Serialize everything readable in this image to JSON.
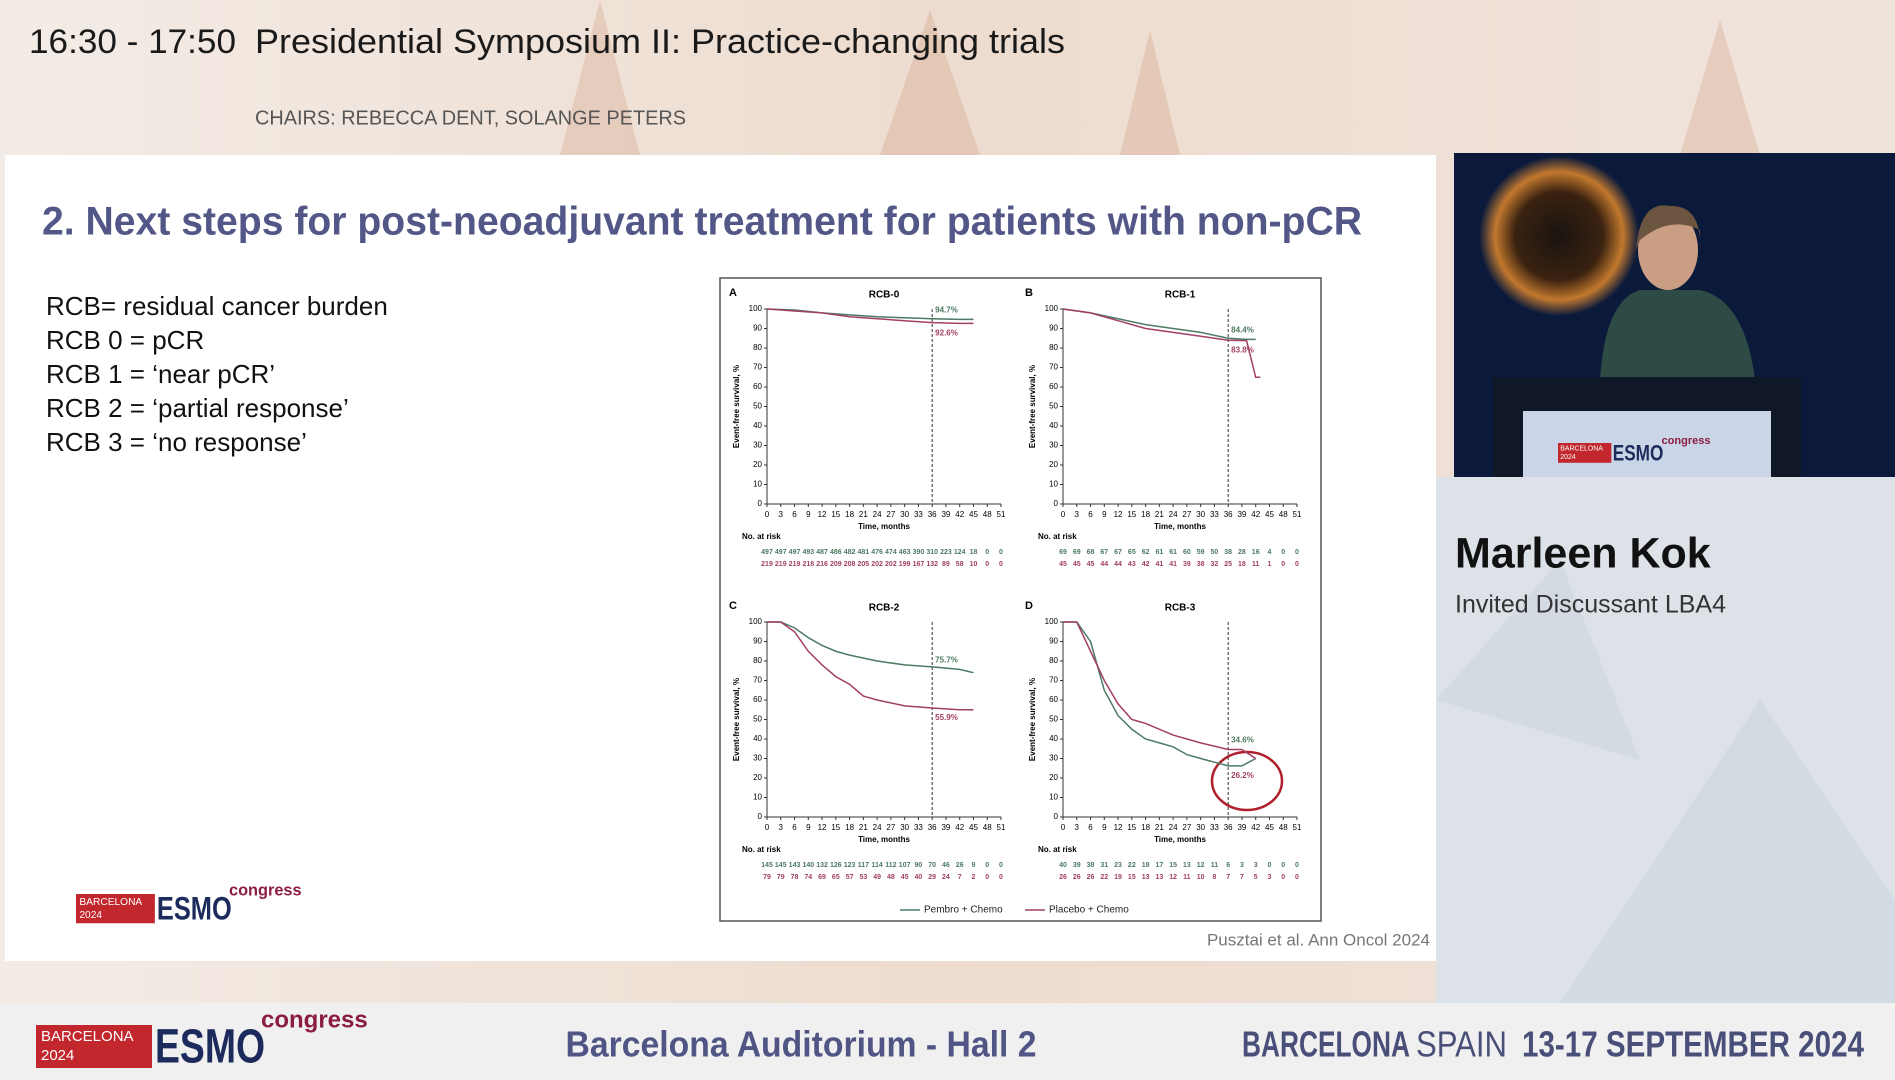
{
  "header": {
    "time": "16:30 - 17:50",
    "session": "Presidential Symposium II: Practice-changing trials",
    "chairs": "CHAIRS: REBECCA DENT, SOLANGE PETERS"
  },
  "slide": {
    "title": "2. Next steps for post-neoadjuvant treatment for patients with non-pCR",
    "definitions": [
      "RCB= residual cancer burden",
      "RCB 0 = pCR",
      "RCB 1 = ‘near pCR’",
      "RCB 2 = ‘partial response’",
      "RCB 3 = ‘no response’"
    ],
    "citation": "Pusztai et al. Ann Oncol 2024"
  },
  "logo": {
    "city": "BARCELONA",
    "year": "2024",
    "brand": "ESMO",
    "suffix": "congress"
  },
  "speaker": {
    "name": "Marleen Kok",
    "role": "Invited Discussant LBA4"
  },
  "footer": {
    "venue": "Barcelona Auditorium - Hall 2",
    "city": "BARCELONA",
    "country": "SPAIN",
    "dates": "13-17 SEPTEMBER 2024"
  },
  "figure_legend": [
    {
      "name": "Pembro + Chemo",
      "color": "#4d7a60"
    },
    {
      "name": "Placebo + Chemo",
      "color": "#a23f66"
    }
  ],
  "chart_data": [
    {
      "type": "line",
      "letter": "A",
      "title": "RCB-0",
      "xlabel": "Time, months",
      "ylabel": "Event-free survival, %",
      "xlim": [
        0,
        51
      ],
      "ylim": [
        0,
        100
      ],
      "xticks": [
        0,
        3,
        6,
        9,
        12,
        15,
        18,
        21,
        24,
        27,
        30,
        33,
        36,
        39,
        42,
        45,
        48,
        51
      ],
      "yticks": [
        0,
        10,
        20,
        30,
        40,
        50,
        60,
        70,
        80,
        90,
        100
      ],
      "vline": 36,
      "series": [
        {
          "color": "#4d7a60",
          "x": [
            0,
            6,
            12,
            18,
            24,
            30,
            36,
            42,
            45
          ],
          "values": [
            100,
            99.5,
            98,
            97,
            96,
            95.5,
            95,
            94.7,
            94.7
          ]
        },
        {
          "color": "#a23f66",
          "x": [
            0,
            6,
            12,
            18,
            24,
            30,
            36,
            42,
            45
          ],
          "values": [
            100,
            99,
            98,
            96,
            95,
            94,
            93,
            92.6,
            92.6
          ]
        }
      ],
      "annotations": [
        {
          "value": 94.7,
          "label": "94.7%"
        },
        {
          "value": 92.6,
          "label": "92.6%"
        }
      ],
      "at_risk": {
        "label": "No. at risk",
        "rows": [
          [
            497,
            497,
            497,
            493,
            487,
            486,
            482,
            481,
            476,
            474,
            463,
            390,
            310,
            223,
            124,
            18,
            0,
            0
          ],
          [
            219,
            219,
            219,
            218,
            216,
            209,
            208,
            205,
            202,
            202,
            199,
            167,
            132,
            89,
            58,
            10,
            0,
            0
          ]
        ]
      }
    },
    {
      "type": "line",
      "letter": "B",
      "title": "RCB-1",
      "xlabel": "Time, months",
      "ylabel": "Event-free survival, %",
      "xlim": [
        0,
        51
      ],
      "ylim": [
        0,
        100
      ],
      "xticks": [
        0,
        3,
        6,
        9,
        12,
        15,
        18,
        21,
        24,
        27,
        30,
        33,
        36,
        39,
        42,
        45,
        48,
        51
      ],
      "yticks": [
        0,
        10,
        20,
        30,
        40,
        50,
        60,
        70,
        80,
        90,
        100
      ],
      "vline": 36,
      "series": [
        {
          "color": "#4d7a60",
          "x": [
            0,
            6,
            12,
            18,
            24,
            30,
            36,
            40,
            42
          ],
          "values": [
            100,
            98,
            95,
            92,
            90,
            88,
            85,
            84.4,
            84.4
          ]
        },
        {
          "color": "#a23f66",
          "x": [
            0,
            6,
            12,
            18,
            24,
            30,
            36,
            40,
            42,
            43
          ],
          "values": [
            100,
            98,
            94,
            90,
            88,
            86,
            84,
            83.8,
            65,
            65
          ]
        }
      ],
      "annotations": [
        {
          "value": 84.4,
          "label": "84.4%"
        },
        {
          "value": 83.8,
          "label": "83.8%"
        }
      ],
      "at_risk": {
        "label": "No. at risk",
        "rows": [
          [
            69,
            69,
            68,
            67,
            67,
            65,
            62,
            61,
            61,
            60,
            59,
            50,
            38,
            28,
            16,
            4,
            0,
            0
          ],
          [
            45,
            45,
            45,
            44,
            44,
            43,
            42,
            41,
            41,
            39,
            38,
            32,
            25,
            18,
            11,
            1,
            0,
            0
          ]
        ]
      }
    },
    {
      "type": "line",
      "letter": "C",
      "title": "RCB-2",
      "xlabel": "Time, months",
      "ylabel": "Event-free survival, %",
      "xlim": [
        0,
        51
      ],
      "ylim": [
        0,
        100
      ],
      "xticks": [
        0,
        3,
        6,
        9,
        12,
        15,
        18,
        21,
        24,
        27,
        30,
        33,
        36,
        39,
        42,
        45,
        48,
        51
      ],
      "yticks": [
        0,
        10,
        20,
        30,
        40,
        50,
        60,
        70,
        80,
        90,
        100
      ],
      "vline": 36,
      "series": [
        {
          "color": "#4d7a60",
          "x": [
            0,
            3,
            6,
            9,
            12,
            15,
            18,
            24,
            30,
            36,
            42,
            45
          ],
          "values": [
            100,
            100,
            97,
            92,
            88,
            85,
            83,
            80,
            78,
            77,
            75.7,
            74
          ]
        },
        {
          "color": "#a23f66",
          "x": [
            0,
            3,
            6,
            9,
            12,
            15,
            18,
            21,
            24,
            30,
            36,
            42,
            45
          ],
          "values": [
            100,
            100,
            95,
            85,
            78,
            72,
            68,
            62,
            60,
            57,
            55.9,
            55,
            55
          ]
        }
      ],
      "annotations": [
        {
          "value": 75.7,
          "label": "75.7%"
        },
        {
          "value": 55.9,
          "label": "55.9%"
        }
      ],
      "at_risk": {
        "label": "No. at risk",
        "rows": [
          [
            145,
            145,
            143,
            140,
            132,
            126,
            123,
            117,
            114,
            112,
            107,
            90,
            70,
            46,
            26,
            9,
            0,
            0
          ],
          [
            79,
            79,
            78,
            74,
            69,
            65,
            57,
            53,
            49,
            48,
            45,
            40,
            29,
            24,
            7,
            2,
            0,
            0
          ]
        ]
      }
    },
    {
      "type": "line",
      "letter": "D",
      "title": "RCB-3",
      "xlabel": "Time, months",
      "ylabel": "Event-free survival, %",
      "xlim": [
        0,
        51
      ],
      "ylim": [
        0,
        100
      ],
      "xticks": [
        0,
        3,
        6,
        9,
        12,
        15,
        18,
        21,
        24,
        27,
        30,
        33,
        36,
        39,
        42,
        45,
        48,
        51
      ],
      "yticks": [
        0,
        10,
        20,
        30,
        40,
        50,
        60,
        70,
        80,
        90,
        100
      ],
      "vline": 36,
      "series": [
        {
          "color": "#4d7a60",
          "x": [
            0,
            3,
            6,
            9,
            12,
            15,
            18,
            21,
            24,
            27,
            30,
            36,
            39,
            42
          ],
          "values": [
            100,
            100,
            90,
            65,
            52,
            45,
            40,
            38,
            36,
            32,
            30,
            26.2,
            26.2,
            30
          ]
        },
        {
          "color": "#a23f66",
          "x": [
            0,
            3,
            6,
            9,
            12,
            15,
            18,
            24,
            30,
            36,
            39,
            42
          ],
          "values": [
            100,
            100,
            85,
            70,
            58,
            50,
            48,
            42,
            38,
            34.6,
            34.6,
            30
          ]
        }
      ],
      "annotations": [
        {
          "value": 34.6,
          "label": "34.6%"
        },
        {
          "value": 26.2,
          "label": "26.2%"
        }
      ],
      "at_risk": {
        "label": "No. at risk",
        "rows": [
          [
            40,
            39,
            38,
            31,
            23,
            22,
            18,
            17,
            15,
            13,
            12,
            11,
            6,
            3,
            3,
            0,
            0,
            0
          ],
          [
            26,
            26,
            26,
            22,
            19,
            15,
            13,
            13,
            12,
            11,
            10,
            8,
            7,
            7,
            5,
            3,
            0,
            0
          ]
        ]
      }
    }
  ]
}
